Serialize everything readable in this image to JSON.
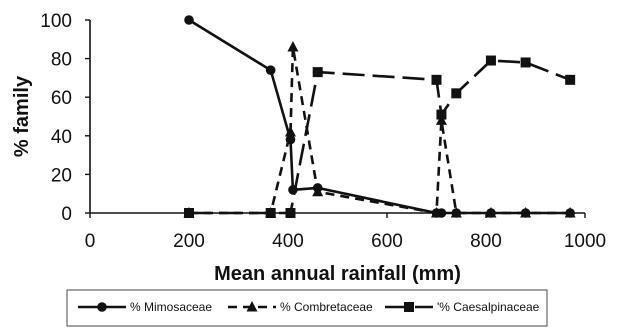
{
  "chart_data": {
    "type": "line",
    "title": "",
    "xlabel": "Mean annual rainfall (mm)",
    "ylabel": "% family",
    "xlim": [
      0,
      1000
    ],
    "ylim": [
      0,
      100
    ],
    "xticks": [
      0,
      200,
      400,
      600,
      800,
      1000
    ],
    "yticks": [
      0,
      20,
      40,
      60,
      80,
      100
    ],
    "grid": false,
    "legend_position": "bottom",
    "series": [
      {
        "name": "% Mimosaceae",
        "marker": "circle",
        "line": "solid",
        "color": "#111111",
        "points": [
          [
            200,
            100
          ],
          [
            365,
            74
          ],
          [
            405,
            38
          ],
          [
            410,
            12
          ],
          [
            460,
            13
          ],
          [
            700,
            0
          ],
          [
            710,
            0
          ],
          [
            740,
            0
          ],
          [
            810,
            0
          ],
          [
            880,
            0
          ],
          [
            970,
            0
          ]
        ]
      },
      {
        "name": "% Combretaceae",
        "marker": "triangle",
        "line": "dashed",
        "color": "#111111",
        "points": [
          [
            200,
            0
          ],
          [
            365,
            0
          ],
          [
            405,
            42
          ],
          [
            410,
            86
          ],
          [
            460,
            11
          ],
          [
            700,
            0
          ],
          [
            710,
            48
          ],
          [
            740,
            0
          ],
          [
            810,
            0
          ],
          [
            880,
            0
          ],
          [
            970,
            0
          ]
        ]
      },
      {
        "name": "'% Caesalpinaceae",
        "marker": "square",
        "line": "longdash",
        "color": "#111111",
        "points": [
          [
            200,
            0
          ],
          [
            365,
            0
          ],
          [
            405,
            0
          ],
          [
            460,
            73
          ],
          [
            700,
            69
          ],
          [
            710,
            51
          ],
          [
            740,
            62
          ],
          [
            810,
            79
          ],
          [
            880,
            78
          ],
          [
            970,
            69
          ]
        ]
      }
    ]
  }
}
